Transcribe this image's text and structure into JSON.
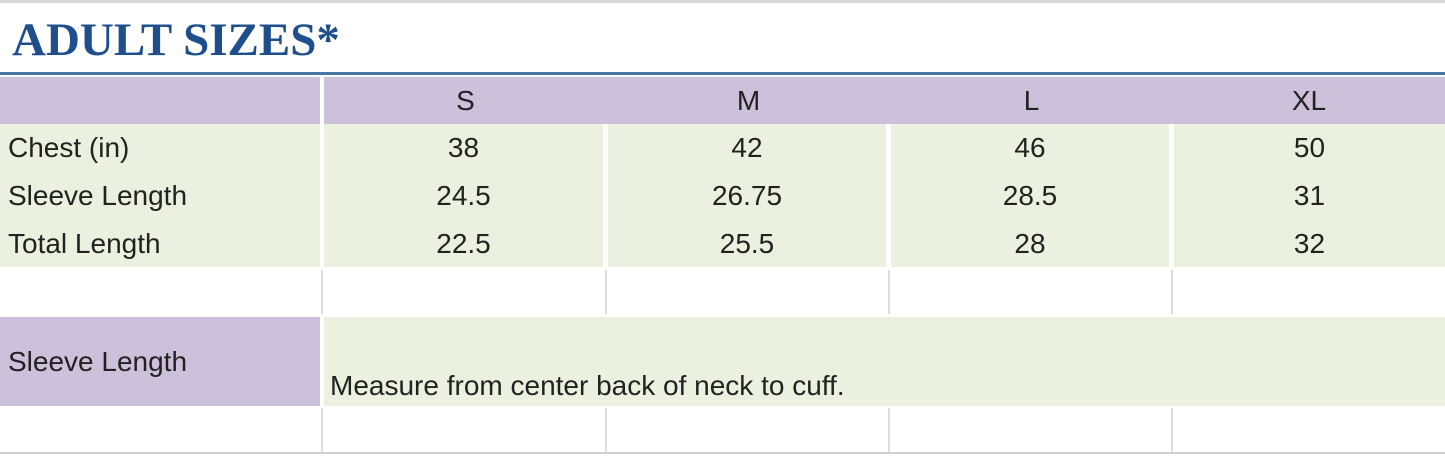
{
  "title": "ADULT SIZES*",
  "table": {
    "columns": [
      "S",
      "M",
      "L",
      "XL"
    ],
    "rows": [
      {
        "label": "Chest (in)",
        "values": [
          "38",
          "42",
          "46",
          "50"
        ]
      },
      {
        "label": "Sleeve Length",
        "values": [
          "24.5",
          "26.75",
          "28.5",
          "31"
        ]
      },
      {
        "label": "Total Length",
        "values": [
          "22.5",
          "25.5",
          "28",
          "32"
        ]
      }
    ]
  },
  "note": {
    "label": "Sleeve Length",
    "text": "Measure from center back of neck to cuff."
  },
  "colors": {
    "title": "#1f4e8c",
    "header": "#ccc0da",
    "body": "#ebf1de"
  }
}
